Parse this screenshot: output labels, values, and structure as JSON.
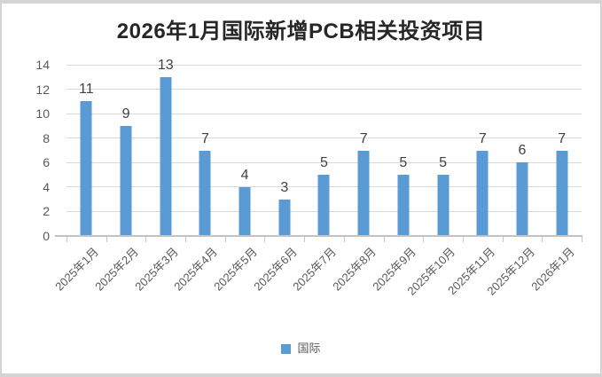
{
  "chart_data": {
    "type": "bar",
    "title": "2026年1月国际新增PCB相关投资项目",
    "categories": [
      "2025年1月",
      "2025年2月",
      "2025年3月",
      "2025年4月",
      "2025年5月",
      "2025年6月",
      "2025年7月",
      "2025年8月",
      "2025年9月",
      "2025年10月",
      "2025年11月",
      "2025年12月",
      "2026年1月"
    ],
    "series": [
      {
        "name": "国际",
        "color": "#5b9bd5",
        "values": [
          11,
          9,
          13,
          7,
          4,
          3,
          5,
          7,
          5,
          5,
          7,
          6,
          7
        ]
      }
    ],
    "ylim": [
      0,
      14
    ],
    "yticks": [
      0,
      2,
      4,
      6,
      8,
      10,
      12,
      14
    ],
    "grid": true,
    "data_labels": true,
    "legend_position": "bottom"
  },
  "styles": {
    "frame_border_color": "#d4d4d4",
    "background": "#ffffff",
    "gridline_color": "#d9d9d9",
    "axis_line_color": "#c3c3c3",
    "axis_label_color": "#595959",
    "data_label_color": "#404040",
    "title_color": "#262626"
  }
}
